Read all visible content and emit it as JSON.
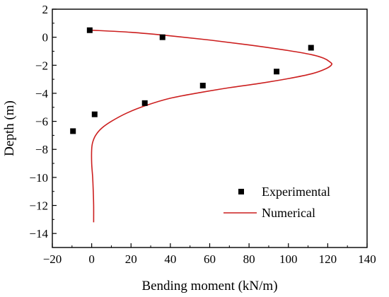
{
  "chart_data": {
    "type": "scatter",
    "xlabel": "Bending moment (kN/m)",
    "ylabel": "Depth (m)",
    "xlim": [
      -20,
      140
    ],
    "ylim": [
      -15,
      2
    ],
    "xticks": [
      -20,
      0,
      20,
      40,
      60,
      80,
      100,
      120,
      140
    ],
    "yticks": [
      2,
      0,
      -2,
      -4,
      -6,
      -8,
      -10,
      -12,
      -14
    ],
    "xtick_labels": [
      "−20",
      "0",
      "20",
      "40",
      "60",
      "80",
      "100",
      "120",
      "140"
    ],
    "ytick_labels": [
      "2",
      "0",
      "−2",
      "−4",
      "−6",
      "−8",
      "−10",
      "−12",
      "−14"
    ],
    "grid": false,
    "legend_position": "bottom-right",
    "series": [
      {
        "name": "Experimental",
        "kind": "scatter",
        "marker": "square",
        "color": "#000000",
        "x": [
          -1,
          36,
          111.5,
          94,
          56.5,
          27,
          1.5,
          -9.5
        ],
        "y": [
          0.5,
          0,
          -0.75,
          -2.45,
          -3.45,
          -4.7,
          -5.5,
          -6.7
        ]
      },
      {
        "name": "Numerical",
        "kind": "line",
        "color": "#cc1f1f",
        "x": [
          0,
          20,
          40,
          60,
          80,
          100,
          112,
          118,
          121,
          122,
          119,
          112,
          100,
          85,
          70,
          55,
          40,
          28,
          18,
          10,
          5,
          2,
          0.5,
          0,
          0,
          0.5,
          0.8,
          1,
          1
        ],
        "y": [
          0.5,
          0.35,
          0.1,
          -0.2,
          -0.55,
          -0.95,
          -1.25,
          -1.5,
          -1.75,
          -1.95,
          -2.25,
          -2.6,
          -2.95,
          -3.3,
          -3.6,
          -3.95,
          -4.35,
          -4.85,
          -5.4,
          -6.0,
          -6.5,
          -7.0,
          -7.5,
          -8.0,
          -9.0,
          -10.0,
          -11.0,
          -12.0,
          -13.2
        ]
      }
    ]
  }
}
